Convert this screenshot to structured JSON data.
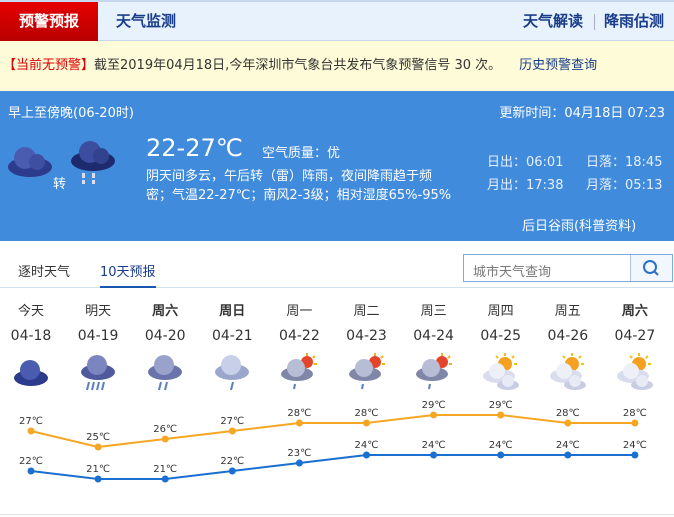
{
  "nav": {
    "active": "预警预报",
    "monitor": "天气监测",
    "interpret": "天气解读",
    "rain": "降雨估测"
  },
  "alert": {
    "status": "【当前无预警】",
    "text": "截至2019年04月18日,今年深圳市气象台共发布气象预警信号 30 次。",
    "history": "历史预警查询"
  },
  "today": {
    "period": "早上至傍晚(06-20时)",
    "update": "更新时间：04月18日 07:23",
    "temp": "22-27℃",
    "air": "空气质量：优",
    "desc1": "阴天间多云，午后转（雷）阵雨，夜间降雨趋于频",
    "desc2": "密；气温22-27℃；南风2-3级；相对湿度65%-95%",
    "turn": "转",
    "sunrise": "日出：06:01",
    "sunset": "日落：18:45",
    "moonrise": "月出：17:38",
    "moonset": "月落：05:13",
    "term": "后日谷雨(科普资料)",
    "icon1": "overcast-icon",
    "icon2": "rain-icon"
  },
  "tabs": {
    "hourly": "逐时天气",
    "ten_day": "10天预报"
  },
  "search": {
    "placeholder": "城市天气查询",
    "icon": "search-icon"
  },
  "colors": {
    "high": "#f5a623",
    "low": "#1a6fd0",
    "panel": "#418bdc",
    "active_tab": "#d40000"
  },
  "days": [
    {
      "name": "今天",
      "date": "04-18",
      "icon": "overcast",
      "bold": false
    },
    {
      "name": "明天",
      "date": "04-19",
      "icon": "heavy-rain",
      "bold": false
    },
    {
      "name": "周六",
      "date": "04-20",
      "icon": "moderate-rain",
      "bold": true
    },
    {
      "name": "周日",
      "date": "04-21",
      "icon": "light-rain",
      "bold": true
    },
    {
      "name": "周一",
      "date": "04-22",
      "icon": "sun-cloud-shower",
      "bold": false
    },
    {
      "name": "周二",
      "date": "04-23",
      "icon": "sun-cloud-shower",
      "bold": false
    },
    {
      "name": "周三",
      "date": "04-24",
      "icon": "sun-cloud-shower",
      "bold": false
    },
    {
      "name": "周四",
      "date": "04-25",
      "icon": "partly-cloudy",
      "bold": false
    },
    {
      "name": "周五",
      "date": "04-26",
      "icon": "partly-cloudy",
      "bold": false
    },
    {
      "name": "周六",
      "date": "04-27",
      "icon": "partly-cloudy",
      "bold": true
    }
  ],
  "chart_data": {
    "type": "line",
    "categories": [
      "04-18",
      "04-19",
      "04-20",
      "04-21",
      "04-22",
      "04-23",
      "04-24",
      "04-25",
      "04-26",
      "04-27"
    ],
    "series": [
      {
        "values": [
          27,
          25,
          26,
          27,
          28,
          28,
          29,
          29,
          28,
          28
        ],
        "color": "#f5a623"
      },
      {
        "values": [
          22,
          21,
          21,
          22,
          23,
          24,
          24,
          24,
          24,
          24
        ],
        "color": "#1a6fd0"
      }
    ],
    "unit": "℃"
  }
}
